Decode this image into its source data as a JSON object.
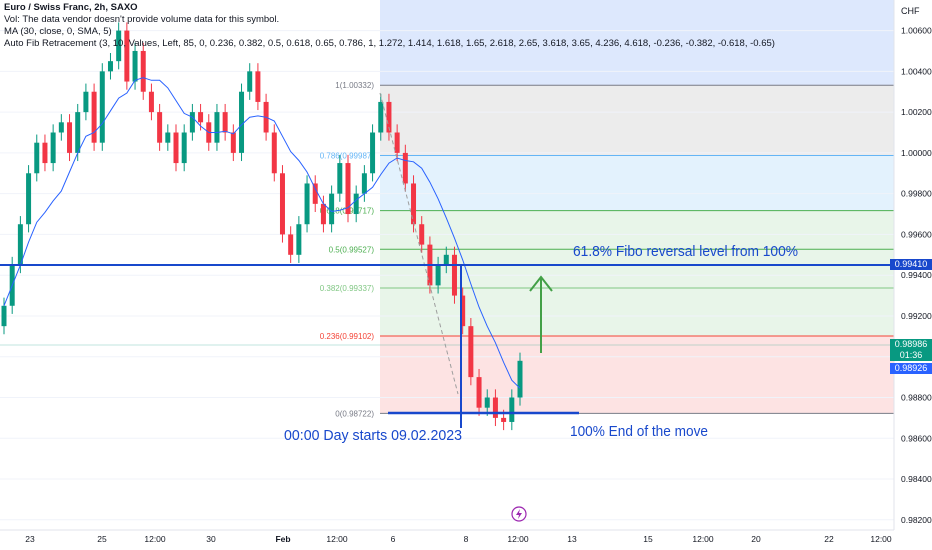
{
  "header": {
    "symbol_line": "Euro / Swiss Franc, 2h, SAXO",
    "vol_line": "Vol: The data vendor doesn't provide volume data for this symbol.",
    "ma_line": "MA (30, close, 0, SMA, 5)",
    "fib_line": "Auto Fib Retracement (3, 10, Values, Left, 85, 0, 0.236, 0.382, 0.5, 0.618, 0.65, 0.786, 1, 1.272, 1.414, 1.618, 1.65, 2.618, 2.65, 3.618, 3.65, 4.236, 4.618, -0.236, -0.382, -0.618, -0.65)"
  },
  "axis": {
    "currency": "CHF",
    "y_ticks": [
      "1.00600",
      "1.00400",
      "1.00200",
      "1.00000",
      "0.99800",
      "0.99600",
      "0.99400",
      "0.99200",
      "0.99000",
      "0.98800",
      "0.98600",
      "0.98400",
      "0.98200"
    ],
    "x_ticks": [
      "23",
      "25",
      "12:00",
      "30",
      "Feb",
      "12:00",
      "6",
      "8",
      "12:00",
      "13",
      "15",
      "12:00",
      "20",
      "22",
      "12:00"
    ]
  },
  "fib_levels": [
    {
      "label": "1(1.00332)",
      "value": 1.00332,
      "color": "#787b86"
    },
    {
      "label": "0.786(0.99987)",
      "value": 0.99987,
      "color": "#64b5f6"
    },
    {
      "label": "0.618(0.99717)",
      "value": 0.99717,
      "color": "#4caf50"
    },
    {
      "label": "0.5(0.99527)",
      "value": 0.99527,
      "color": "#4caf50"
    },
    {
      "label": "0.382(0.99337)",
      "value": 0.99337,
      "color": "#81c784"
    },
    {
      "label": "0.236(0.99102)",
      "value": 0.99102,
      "color": "#f44336"
    },
    {
      "label": "0(0.98722)",
      "value": 0.98722,
      "color": "#787b86"
    }
  ],
  "colors": {
    "up": "#089981",
    "down": "#f23645",
    "ma": "#2962ff",
    "annotation": "#1848cc",
    "arrow": "#43a047"
  },
  "annotations": {
    "fib_reversal": "61.8% Fibo reversal level from 100%",
    "end_of_move": "100% End of the move",
    "day_start": "00:00 Day starts 09.02.2023"
  },
  "price_tags": {
    "horizontal": "0.99410",
    "last_price": "0.98986",
    "countdown": "01:36",
    "prev_price": "0.98926"
  },
  "chart_data": {
    "type": "candlestick",
    "symbol": "Euro / Swiss Franc",
    "interval": "2h",
    "ylim": [
      0.9815,
      1.0075
    ],
    "close_series": [
      0.9925,
      0.9945,
      0.9965,
      0.999,
      1.0005,
      0.9995,
      1.001,
      1.0015,
      1.0,
      1.002,
      1.003,
      1.0005,
      1.004,
      1.0045,
      1.006,
      1.0035,
      1.005,
      1.003,
      1.002,
      1.0005,
      1.001,
      0.9995,
      1.001,
      1.002,
      1.0015,
      1.0005,
      1.002,
      1.001,
      1.0,
      1.003,
      1.004,
      1.0025,
      1.001,
      0.999,
      0.996,
      0.995,
      0.9965,
      0.9985,
      0.9975,
      0.9965,
      0.998,
      0.9995,
      0.997,
      0.998,
      0.999,
      1.001,
      1.0025,
      1.001,
      1.0,
      0.9985,
      0.9965,
      0.9955,
      0.9935,
      0.9945,
      0.995,
      0.993,
      0.9915,
      0.989,
      0.9875,
      0.988,
      0.987,
      0.9868,
      0.988,
      0.9898
    ]
  }
}
